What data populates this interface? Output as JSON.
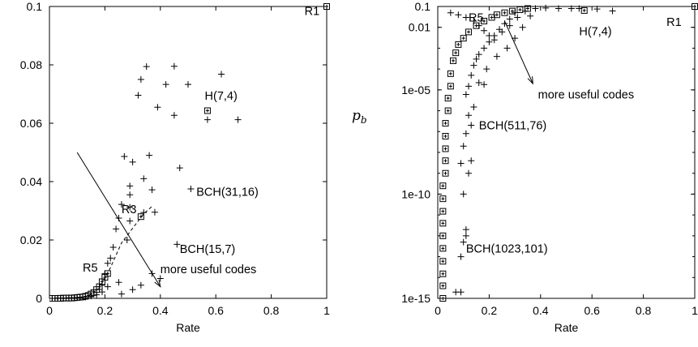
{
  "chart_data": [
    {
      "type": "scatter",
      "xlabel": "Rate",
      "ylabel": "",
      "xlim": [
        0,
        1
      ],
      "ylim": [
        0,
        0.1
      ],
      "xticks": [
        "0",
        "0.2",
        "0.4",
        "0.6",
        "0.8",
        "1"
      ],
      "yticks": [
        "0",
        "0.02",
        "0.04",
        "0.06",
        "0.08",
        "0.1"
      ],
      "grid": false,
      "series": [
        {
          "marker": "plus",
          "points": [
            [
              0.35,
              0.0794
            ],
            [
              0.45,
              0.0795
            ],
            [
              0.33,
              0.075
            ],
            [
              0.42,
              0.0733
            ],
            [
              0.5,
              0.0733
            ],
            [
              0.62,
              0.0768
            ],
            [
              0.32,
              0.0696
            ],
            [
              0.39,
              0.0655
            ],
            [
              0.45,
              0.0627
            ],
            [
              0.57,
              0.0612
            ],
            [
              0.68,
              0.0612
            ],
            [
              0.27,
              0.0486
            ],
            [
              0.36,
              0.049
            ],
            [
              0.3,
              0.0467
            ],
            [
              0.47,
              0.0447
            ],
            [
              0.34,
              0.041
            ],
            [
              0.29,
              0.0385
            ],
            [
              0.37,
              0.0372
            ],
            [
              0.29,
              0.0355
            ],
            [
              0.51,
              0.0375
            ],
            [
              0.26,
              0.0322
            ],
            [
              0.29,
              0.0312
            ],
            [
              0.34,
              0.0294
            ],
            [
              0.38,
              0.0295
            ],
            [
              0.25,
              0.0275
            ],
            [
              0.29,
              0.0265
            ],
            [
              0.24,
              0.0238
            ],
            [
              0.28,
              0.02
            ],
            [
              0.46,
              0.0185
            ],
            [
              0.23,
              0.0175
            ],
            [
              0.22,
              0.0138
            ],
            [
              0.21,
              0.012
            ],
            [
              0.2,
              0.0085
            ],
            [
              0.19,
              0.0045
            ],
            [
              0.21,
              0.004
            ],
            [
              0.25,
              0.0055
            ],
            [
              0.37,
              0.0085
            ],
            [
              0.4,
              0.0068
            ],
            [
              0.33,
              0.0045
            ],
            [
              0.3,
              0.003
            ],
            [
              0.26,
              0.0015
            ],
            [
              0.19,
              0.0022
            ],
            [
              0.17,
              0.0012
            ],
            [
              0.15,
              0.0008
            ],
            [
              0.13,
              0.0005
            ],
            [
              0.11,
              0.0003
            ],
            [
              0.09,
              0.0002
            ],
            [
              0.07,
              0.0002
            ],
            [
              0.05,
              0.0001
            ],
            [
              0.03,
              0.0001
            ],
            [
              0.01,
              0.0
            ]
          ]
        },
        {
          "marker": "square",
          "points": [
            [
              0.0,
              0.0
            ],
            [
              0.01,
              0.0
            ],
            [
              0.02,
              0.0
            ],
            [
              0.03,
              0.0
            ],
            [
              0.04,
              0.0
            ],
            [
              0.05,
              0.0001
            ],
            [
              0.06,
              0.0001
            ],
            [
              0.07,
              0.0001
            ],
            [
              0.08,
              0.0001
            ],
            [
              0.09,
              0.0002
            ],
            [
              0.1,
              0.0003
            ],
            [
              0.11,
              0.0004
            ],
            [
              0.12,
              0.0005
            ],
            [
              0.13,
              0.0007
            ],
            [
              0.14,
              0.001
            ],
            [
              0.15,
              0.0015
            ],
            [
              0.16,
              0.002
            ],
            [
              0.17,
              0.003
            ],
            [
              0.18,
              0.004
            ],
            [
              0.19,
              0.0057
            ],
            [
              0.2,
              0.0072
            ],
            [
              0.21,
              0.0085
            ],
            [
              0.33,
              0.028
            ],
            [
              0.57,
              0.0643
            ],
            [
              1.0,
              0.1
            ]
          ]
        },
        {
          "marker": "dashed-curve",
          "points": [
            [
              0.14,
              0.0008
            ],
            [
              0.18,
              0.0035
            ],
            [
              0.22,
              0.0105
            ],
            [
              0.26,
              0.019
            ],
            [
              0.3,
              0.024
            ],
            [
              0.34,
              0.029
            ],
            [
              0.37,
              0.0315
            ]
          ]
        }
      ],
      "arrow": {
        "from": [
          0.1,
          0.05
        ],
        "to": [
          0.4,
          0.004
        ]
      },
      "annotations": [
        {
          "text": "R1",
          "x": 0.92,
          "y": 0.0985
        },
        {
          "text": "H(7,4)",
          "x": 0.56,
          "y": 0.0695
        },
        {
          "text": "BCH(31,16)",
          "x": 0.53,
          "y": 0.0365
        },
        {
          "text": "R3",
          "x": 0.26,
          "y": 0.0305
        },
        {
          "text": "BCH(15,7)",
          "x": 0.47,
          "y": 0.017
        },
        {
          "text": "R5",
          "x": 0.12,
          "y": 0.0105
        },
        {
          "text": "more useful codes",
          "x": 0.4,
          "y": 0.01
        }
      ]
    },
    {
      "type": "scatter",
      "xlabel": "Rate",
      "ylabel": "p_b",
      "ylabel_main": "p",
      "ylabel_sub": "b",
      "xlim": [
        0,
        1
      ],
      "ylim": [
        1e-15,
        0.1
      ],
      "yscale": "log",
      "xticks": [
        "0",
        "0.2",
        "0.4",
        "0.6",
        "0.8",
        "1"
      ],
      "yticks": [
        {
          "label": "0.1",
          "value": 0.1
        },
        {
          "label": "0.01",
          "value": 0.01
        },
        {
          "label": "1e-05",
          "value": 1e-05
        },
        {
          "label": "1e-10",
          "value": 1e-10
        },
        {
          "label": "1e-15",
          "value": 1e-15
        }
      ],
      "grid": false,
      "series": [
        {
          "marker": "plus",
          "points": [
            [
              0.05,
              0.05
            ],
            [
              0.08,
              0.04
            ],
            [
              0.11,
              0.03
            ],
            [
              0.14,
              0.02
            ],
            [
              0.16,
              0.012
            ],
            [
              0.18,
              0.007
            ],
            [
              0.2,
              0.004
            ],
            [
              0.22,
              0.0025
            ],
            [
              0.25,
              0.006
            ],
            [
              0.28,
              0.012
            ],
            [
              0.31,
              0.03
            ],
            [
              0.34,
              0.06
            ],
            [
              0.38,
              0.08
            ],
            [
              0.42,
              0.085
            ],
            [
              0.47,
              0.08
            ],
            [
              0.52,
              0.08
            ],
            [
              0.55,
              0.08
            ],
            [
              0.62,
              0.076
            ],
            [
              0.68,
              0.061
            ],
            [
              0.3,
              0.05
            ],
            [
              0.36,
              0.035
            ],
            [
              0.28,
              0.025
            ],
            [
              0.26,
              0.015
            ],
            [
              0.24,
              0.008
            ],
            [
              0.22,
              0.004
            ],
            [
              0.2,
              0.002
            ],
            [
              0.18,
              0.001
            ],
            [
              0.16,
              0.0005
            ],
            [
              0.15,
              0.0003
            ],
            [
              0.14,
              0.00015
            ],
            [
              0.13,
              5e-05
            ],
            [
              0.12,
              1.5e-05
            ],
            [
              0.11,
              6e-06
            ],
            [
              0.18,
              1.8e-05
            ],
            [
              0.16,
              2.2e-05
            ],
            [
              0.19,
              0.0001
            ],
            [
              0.23,
              0.0004
            ],
            [
              0.27,
              0.001
            ],
            [
              0.3,
              0.003
            ],
            [
              0.33,
              0.01
            ],
            [
              0.14,
              1.5e-06
            ],
            [
              0.12,
              6e-07
            ],
            [
              0.13,
              2e-07
            ],
            [
              0.11,
              8e-08
            ],
            [
              0.1,
              2e-08
            ],
            [
              0.09,
              3e-09
            ],
            [
              0.12,
              1e-09
            ],
            [
              0.13,
              4e-09
            ],
            [
              0.1,
              1e-10
            ],
            [
              0.1,
              5e-13
            ],
            [
              0.11,
              1e-12
            ],
            [
              0.11,
              2e-12
            ],
            [
              0.09,
              1e-13
            ],
            [
              0.07,
              2e-15
            ],
            [
              0.09,
              2e-15
            ]
          ]
        },
        {
          "marker": "square",
          "points": [
            [
              0.02,
              1e-15
            ],
            [
              0.02,
              4e-15
            ],
            [
              0.02,
              1.5e-14
            ],
            [
              0.02,
              6e-14
            ],
            [
              0.02,
              2.5e-13
            ],
            [
              0.02,
              1e-12
            ],
            [
              0.02,
              4e-12
            ],
            [
              0.02,
              1.5e-11
            ],
            [
              0.02,
              6e-11
            ],
            [
              0.02,
              2.5e-10
            ],
            [
              0.03,
              1e-09
            ],
            [
              0.03,
              4e-09
            ],
            [
              0.03,
              1.5e-08
            ],
            [
              0.03,
              6e-08
            ],
            [
              0.03,
              2.5e-07
            ],
            [
              0.04,
              1e-06
            ],
            [
              0.04,
              4e-06
            ],
            [
              0.05,
              1.5e-05
            ],
            [
              0.05,
              6e-05
            ],
            [
              0.06,
              0.00025
            ],
            [
              0.07,
              0.0006
            ],
            [
              0.08,
              0.0015
            ],
            [
              0.1,
              0.003
            ],
            [
              0.12,
              0.006
            ],
            [
              0.15,
              0.012
            ],
            [
              0.18,
              0.02
            ],
            [
              0.21,
              0.03
            ],
            [
              0.23,
              0.04
            ],
            [
              0.26,
              0.05
            ],
            [
              0.29,
              0.06
            ],
            [
              0.32,
              0.07
            ],
            [
              0.35,
              0.08
            ],
            [
              0.57,
              0.0643
            ],
            [
              1.0,
              0.1
            ]
          ]
        }
      ],
      "arrow": {
        "from": [
          0.26,
          0.02
        ],
        "to": [
          0.37,
          2e-05
        ]
      },
      "annotations": [
        {
          "text": "R1",
          "x": 0.89,
          "y": 0.018
        },
        {
          "text": "R5",
          "x": 0.12,
          "y": 0.03
        },
        {
          "text": "H(7,4)",
          "x": 0.55,
          "y": 0.0065
        },
        {
          "text": "more useful codes",
          "x": 0.39,
          "y": 6e-06
        },
        {
          "text": "BCH(511,76)",
          "x": 0.16,
          "y": 2e-07
        },
        {
          "text": "BCH(1023,101)",
          "x": 0.11,
          "y": 2.5e-13
        }
      ]
    }
  ]
}
